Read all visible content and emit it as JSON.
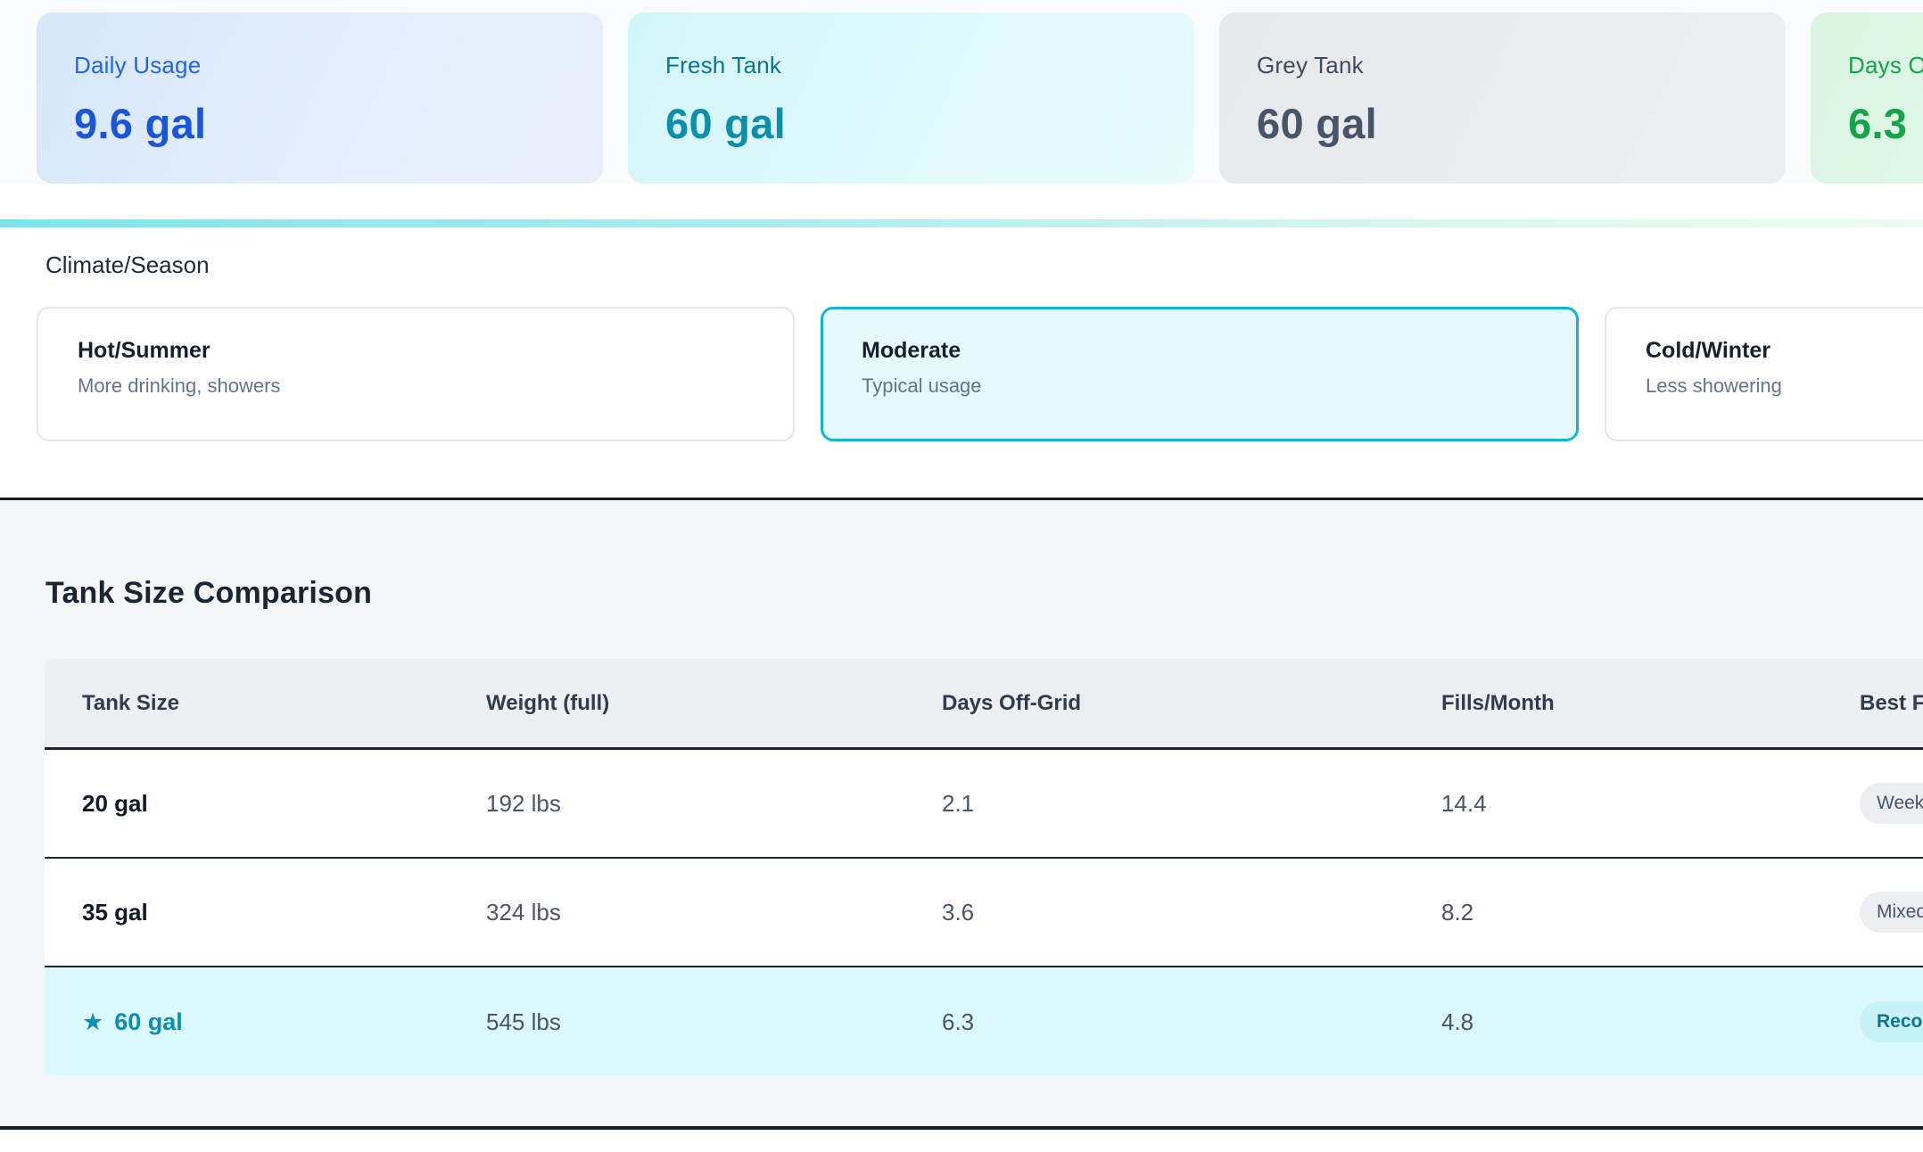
{
  "stats": {
    "cards": [
      {
        "label": "Daily Usage",
        "value": "9.6 gal",
        "theme": "blue"
      },
      {
        "label": "Fresh Tank",
        "value": "60 gal",
        "theme": "teal"
      },
      {
        "label": "Grey Tank",
        "value": "60 gal",
        "theme": "grey"
      },
      {
        "label": "Days Off-Grid",
        "value": "6.3",
        "theme": "green"
      }
    ]
  },
  "climate": {
    "label": "Climate/Season",
    "options": [
      {
        "title": "Hot/Summer",
        "subtitle": "More drinking, showers",
        "selected": false
      },
      {
        "title": "Moderate",
        "subtitle": "Typical usage",
        "selected": true
      },
      {
        "title": "Cold/Winter",
        "subtitle": "Less showering",
        "selected": false
      }
    ]
  },
  "comparison": {
    "title": "Tank Size Comparison",
    "columns": [
      "Tank Size",
      "Weight (full)",
      "Days Off-Grid",
      "Fills/Month",
      "Best For"
    ],
    "star_icon": "★",
    "rows": [
      {
        "size": "20 gal",
        "weight": "192 lbs",
        "days": "2.1",
        "fills": "14.4",
        "best": "Weekender",
        "recommended": false
      },
      {
        "size": "35 gal",
        "weight": "324 lbs",
        "days": "3.6",
        "fills": "8.2",
        "best": "Mixed use",
        "recommended": false
      },
      {
        "size": "60 gal",
        "weight": "545 lbs",
        "days": "6.3",
        "fills": "4.8",
        "best": "Recommended",
        "recommended": true
      }
    ]
  },
  "colors": {
    "accent_cyan": "#14b4d4",
    "blue_value": "#1a56db",
    "teal_value": "#0b8fab",
    "grey_value": "#475569",
    "green_value": "#16a34a",
    "section_bg": "#f5f6f8",
    "row_highlight_bg": "#dcf9fd",
    "dark_border": "#1b2430"
  }
}
